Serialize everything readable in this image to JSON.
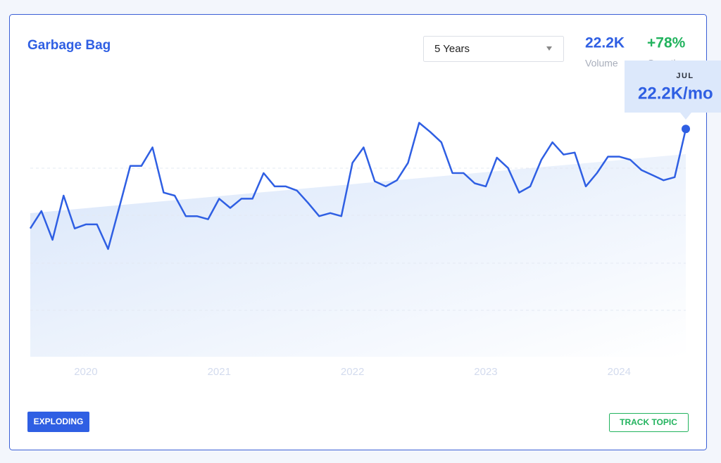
{
  "header": {
    "title": "Garbage Bag",
    "range_select": "5 Years",
    "volume": {
      "value": "22.2K",
      "label": "Volume"
    },
    "growth": {
      "value": "+78%",
      "label": "Growth"
    }
  },
  "tooltip": {
    "month": "JUL",
    "value": "22.2K/mo"
  },
  "badge": "EXPLODING",
  "button": "TRACK TOPIC",
  "chart_data": {
    "type": "line",
    "color": "#2f5fe3",
    "categories": [
      null,
      null,
      null,
      null,
      null,
      "2020",
      null,
      null,
      null,
      null,
      null,
      null,
      null,
      null,
      null,
      null,
      null,
      "2021",
      null,
      null,
      null,
      null,
      null,
      null,
      null,
      null,
      null,
      null,
      null,
      "2022",
      null,
      null,
      null,
      null,
      null,
      null,
      null,
      null,
      null,
      null,
      null,
      "2023",
      null,
      null,
      null,
      null,
      null,
      null,
      null,
      null,
      null,
      null,
      null,
      "2024",
      null,
      null,
      null,
      null,
      null,
      null
    ],
    "values": [
      12500,
      14200,
      11400,
      15700,
      12500,
      12900,
      12900,
      10500,
      14500,
      18600,
      18600,
      20400,
      16000,
      15700,
      13700,
      13700,
      13400,
      15400,
      14500,
      15400,
      15400,
      17900,
      16600,
      16600,
      16200,
      15000,
      13700,
      14000,
      13700,
      18900,
      20400,
      17100,
      16600,
      17200,
      18900,
      22800,
      21900,
      20900,
      17900,
      17900,
      16900,
      16600,
      19400,
      18400,
      16000,
      16600,
      19200,
      20900,
      19700,
      19900,
      16600,
      17900,
      19500,
      19500,
      19200,
      18200,
      17700,
      17200,
      17500,
      22200
    ],
    "ylim": [
      0,
      24000
    ]
  }
}
